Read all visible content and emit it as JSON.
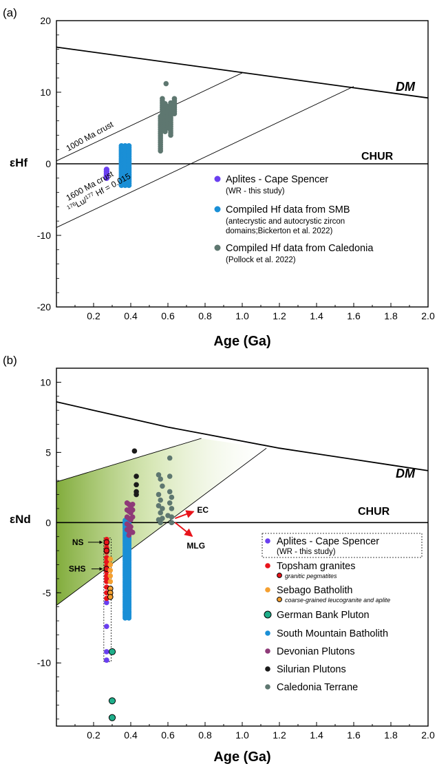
{
  "chart_data": [
    {
      "panel_label": "(a)",
      "type": "scatter",
      "xlabel": "Age (Ga)",
      "ylabel": "εHf",
      "xlim": [
        0,
        2.0
      ],
      "ylim": [
        -20,
        20
      ],
      "xticks": [
        "0.2",
        "0.4",
        "0.6",
        "0.8",
        "1.0",
        "1.2",
        "1.4",
        "1.6",
        "1.8",
        "2.0"
      ],
      "yticks": [
        "20",
        "10",
        "0",
        "-10",
        "-20"
      ],
      "reference_lines": {
        "dm_label": "DM",
        "chur_label": "CHUR",
        "crust_1000_label": "1000 Ma crust",
        "crust_1600_label": "1600 Ma crust",
        "lu_hf_label": "176Lu/177Hf = 0.015",
        "dm_line": [
          [
            0,
            16.3
          ],
          [
            2.0,
            9.2
          ]
        ],
        "crust_1000": [
          [
            0,
            0.4
          ],
          [
            1.0,
            12.7
          ]
        ],
        "crust_1600": [
          [
            0,
            -8.9
          ],
          [
            1.6,
            10.8
          ]
        ]
      },
      "legend": {
        "position": "lower-right",
        "entries": [
          {
            "main": "Aplites - Cape Spencer",
            "sub": "(WR - this study)",
            "color": "#6a3ff0"
          },
          {
            "main": "Compiled Hf data from SMB",
            "sub": "(antecrystic and autocrystic zircon domains;Bickerton et al. 2022)",
            "sub_lines": [
              "(antecrystic and autocrystic zircon",
              "domains;Bickerton et al. 2022)"
            ],
            "color": "#1a8fd6"
          },
          {
            "main": "Compiled Hf data from Caledonia",
            "sub": "(Pollock et al. 2022)",
            "color": "#5e7770"
          }
        ]
      },
      "series": [
        {
          "name": "Aplites - Cape Spencer",
          "color": "#6a3ff0",
          "x": [
            0.27,
            0.27,
            0.27,
            0.27,
            0.27
          ],
          "y": [
            -0.8,
            -1.1,
            -1.4,
            -1.7,
            -2.0
          ]
        },
        {
          "name": "Compiled Hf data from SMB",
          "color": "#1a8fd6",
          "x_range": [
            0.35,
            0.39
          ],
          "y_range": [
            -3.0,
            2.6
          ]
        },
        {
          "name": "Compiled Hf data from Caledonia",
          "color": "#5e7770",
          "groups": [
            {
              "x": 0.56,
              "y_range": [
                1.8,
                6.8
              ]
            },
            {
              "x": 0.57,
              "y_range": [
                5.5,
                9.3
              ]
            },
            {
              "x": 0.585,
              "y_range": [
                4.5,
                8.5
              ]
            },
            {
              "x": 0.6,
              "y_range": [
                5.0,
                8.0
              ]
            },
            {
              "x": 0.615,
              "y_range": [
                4.0,
                8.5
              ]
            },
            {
              "x": 0.635,
              "y_range": [
                7.0,
                9.3
              ]
            }
          ],
          "extra_points": [
            [
              0.59,
              11.2
            ]
          ]
        }
      ]
    },
    {
      "panel_label": "(b)",
      "type": "scatter",
      "xlabel": "Age (Ga)",
      "ylabel": "εNd",
      "xlim": [
        0,
        2.0
      ],
      "ylim": [
        -14.5,
        11
      ],
      "xticks": [
        "0.2",
        "0.4",
        "0.6",
        "0.8",
        "1.0",
        "1.2",
        "1.4",
        "1.6",
        "1.8",
        "2.0"
      ],
      "yticks": [
        "10",
        "5",
        "0",
        "-5",
        "-10"
      ],
      "reference_lines": {
        "dm_label": "DM",
        "chur_label": "CHUR",
        "dm_curve": [
          [
            0,
            8.6
          ],
          [
            0.2,
            8.0
          ],
          [
            0.4,
            7.4
          ],
          [
            0.6,
            6.8
          ],
          [
            0.8,
            6.3
          ],
          [
            1.0,
            5.8
          ],
          [
            1.2,
            5.3
          ],
          [
            1.4,
            4.9
          ],
          [
            1.6,
            4.5
          ],
          [
            1.8,
            4.1
          ],
          [
            2.0,
            3.7
          ]
        ],
        "upper_bound": [
          [
            0,
            2.9
          ],
          [
            0.78,
            6.0
          ]
        ],
        "lower_bound": [
          [
            0,
            -5.9
          ],
          [
            1.13,
            5.3
          ]
        ]
      },
      "annotations": [
        {
          "label": "NS",
          "x": 0.27,
          "y": -1.4
        },
        {
          "label": "SHS",
          "x": 0.27,
          "y": -3.3
        },
        {
          "label": "EC",
          "x": 0.62,
          "y": 0.2
        },
        {
          "label": "MLG",
          "x": 0.62,
          "y": 0.2
        }
      ],
      "legend": {
        "position": "lower-right",
        "entries": [
          {
            "main": "Aplites - Cape Spencer",
            "sub": "(WR - this study)",
            "color": "#6a3ff0"
          },
          {
            "main": "Topsham granites",
            "sub": "granitic pegmatites",
            "color": "#e8141b"
          },
          {
            "main": "Sebago Batholith",
            "sub": "coarse-grained leucogranite and aplite",
            "color": "#f5a030"
          },
          {
            "main": "German Bank Pluton",
            "color": "#1fae8a"
          },
          {
            "main": "South Mountain Batholith",
            "color": "#1a8fd6"
          },
          {
            "main": "Devonian Plutons",
            "color": "#8e3a78"
          },
          {
            "main": "Silurian Plutons",
            "color": "#1a1a1a"
          },
          {
            "main": "Caledonia Terrane",
            "color": "#5e7770"
          }
        ]
      },
      "series": [
        {
          "name": "Aplites - Cape Spencer",
          "color": "#6a3ff0",
          "x": [
            0.27,
            0.27,
            0.27,
            0.27,
            0.27
          ],
          "y": [
            -5.7,
            -7.4,
            -9.2,
            -9.8,
            -9.8
          ]
        },
        {
          "name": "Topsham granites",
          "color": "#e8141b",
          "x": [
            0.27,
            0.27,
            0.27,
            0.27,
            0.27,
            0.27,
            0.27,
            0.27,
            0.27,
            0.27,
            0.27,
            0.27,
            0.27,
            0.27
          ],
          "y": [
            -1.5,
            -1.8,
            -2.1,
            -2.5,
            -2.8,
            -3.1,
            -3.5,
            -3.8,
            -4.2,
            -4.6,
            -5.0,
            -5.4,
            -1.2,
            -4.0
          ]
        },
        {
          "name": "Topsham granites (granitic pegmatites)",
          "color": "#e8141b",
          "outlined": true,
          "x": [
            0.27,
            0.27,
            0.27
          ],
          "y": [
            -1.4,
            -3.3,
            -2.0
          ]
        },
        {
          "name": "Sebago Batholith",
          "color": "#f5a030",
          "x": [
            0.29,
            0.29,
            0.29,
            0.29,
            0.29,
            0.29,
            0.29
          ],
          "y": [
            -2.6,
            -3.0,
            -3.4,
            -3.8,
            -4.2,
            -4.7,
            -5.2
          ]
        },
        {
          "name": "Sebago Batholith (coarse-grained leucogranite and aplite)",
          "color": "#f5a030",
          "outlined": true,
          "x": [
            0.29,
            0.29,
            0.29
          ],
          "y": [
            -4.7,
            -5.0,
            -5.3
          ]
        },
        {
          "name": "German Bank Pluton",
          "color": "#1fae8a",
          "x": [
            0.3,
            0.3,
            0.3
          ],
          "y": [
            -9.2,
            -12.7,
            -13.9
          ]
        },
        {
          "name": "South Mountain Batholith",
          "color": "#1a8fd6",
          "x_range": [
            0.37,
            0.39
          ],
          "y_range": [
            -6.8,
            0.2
          ]
        },
        {
          "name": "Devonian Plutons",
          "color": "#8e3a78",
          "x": [
            0.38,
            0.39,
            0.4,
            0.41,
            0.38,
            0.39,
            0.4,
            0.41,
            0.38,
            0.39,
            0.4,
            0.41,
            0.38,
            0.39,
            0.4,
            0.38,
            0.39,
            0.4,
            0.41,
            0.39
          ],
          "y": [
            1.4,
            1.3,
            1.1,
            1.3,
            0.9,
            0.8,
            0.7,
            0.9,
            0.4,
            0.3,
            0.2,
            0.4,
            -0.1,
            -0.2,
            -0.3,
            -0.5,
            -0.6,
            -0.6,
            -0.7,
            -0.9
          ]
        },
        {
          "name": "Silurian Plutons",
          "color": "#1a1a1a",
          "x": [
            0.42,
            0.43,
            0.43,
            0.43,
            0.43
          ],
          "y": [
            5.1,
            3.3,
            2.7,
            2.2,
            2.0
          ]
        },
        {
          "name": "Caledonia Terrane",
          "color": "#5e7770",
          "x": [
            0.55,
            0.55,
            0.55,
            0.55,
            0.56,
            0.56,
            0.56,
            0.56,
            0.57,
            0.57,
            0.57,
            0.6,
            0.61,
            0.61,
            0.61,
            0.61,
            0.62,
            0.62,
            0.62,
            0.62
          ],
          "y": [
            3.4,
            2.0,
            1.2,
            0.2,
            3.1,
            1.6,
            0.7,
            0.0,
            2.6,
            1.0,
            0.3,
            0.5,
            4.6,
            3.3,
            2.2,
            1.4,
            1.8,
            1.0,
            0.4,
            0.0
          ]
        }
      ]
    }
  ]
}
